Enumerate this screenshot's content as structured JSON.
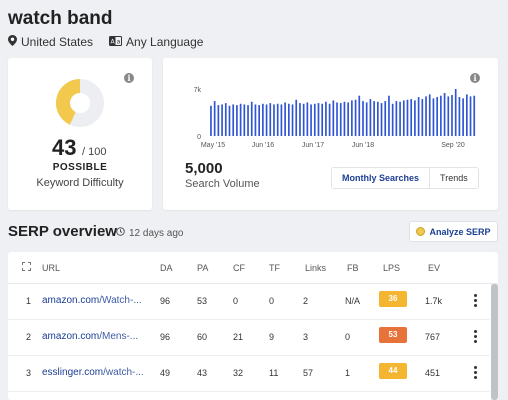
{
  "keyword": "watch band",
  "location": "United States",
  "language": "Any Language",
  "difficulty": {
    "score": "43",
    "max": "/ 100",
    "level": "POSSIBLE",
    "label": "Keyword Difficulty",
    "fraction": 0.43,
    "color": "#f2c94c"
  },
  "volume": {
    "value": "5,000",
    "label": "Search Volume",
    "tabs": [
      "Monthly Searches",
      "Trends"
    ],
    "active_tab": "Monthly Searches"
  },
  "chart_data": {
    "type": "bar",
    "ylim": [
      0,
      7000
    ],
    "ytick_labels": [
      "7k",
      "0"
    ],
    "xtick_labels": [
      "May '15",
      "Jun '16",
      "Jun '17",
      "Jun '18",
      "Sep '20"
    ],
    "bar_color": "#2f55d4",
    "values": [
      4500,
      5200,
      4600,
      4700,
      4900,
      4500,
      4700,
      4600,
      4800,
      4700,
      4600,
      5100,
      4700,
      4600,
      4800,
      4700,
      4900,
      4700,
      4800,
      4700,
      5000,
      4800,
      4700,
      5400,
      4900,
      4800,
      5000,
      4700,
      4800,
      4900,
      4800,
      5100,
      4800,
      5300,
      5000,
      4900,
      5100,
      5000,
      5300,
      5400,
      6000,
      5200,
      5000,
      5500,
      5200,
      5100,
      4900,
      5200,
      6000,
      4800,
      5200,
      5100,
      5300,
      5400,
      5500,
      5300,
      5800,
      5500,
      5900,
      6200,
      5600,
      5800,
      6000,
      6400,
      5900,
      6100,
      7000,
      5800,
      5600,
      6200,
      5900,
      6000
    ]
  },
  "serp": {
    "title": "SERP overview",
    "age": "12 days ago",
    "analyze_label": "Analyze SERP",
    "columns": [
      "URL",
      "DA",
      "PA",
      "CF",
      "TF",
      "Links",
      "FB",
      "LPS",
      "EV"
    ],
    "rows": [
      {
        "rank": "1",
        "domain": "amazon.com",
        "path": "/Watch-...",
        "da": "96",
        "pa": "53",
        "cf": "0",
        "tf": "0",
        "links": "2",
        "fb": "N/A",
        "lps": "36",
        "lps_color": "#f4b531",
        "ev": "1.7k"
      },
      {
        "rank": "2",
        "domain": "amazon.com",
        "path": "/Mens-...",
        "da": "96",
        "pa": "60",
        "cf": "21",
        "tf": "9",
        "links": "3",
        "fb": "0",
        "lps": "53",
        "lps_color": "#e8733a",
        "ev": "767"
      },
      {
        "rank": "3",
        "domain": "esslinger.com",
        "path": "/watch-...",
        "da": "49",
        "pa": "43",
        "cf": "32",
        "tf": "11",
        "links": "57",
        "fb": "1",
        "lps": "44",
        "lps_color": "#f4b531",
        "ev": "451"
      }
    ]
  }
}
